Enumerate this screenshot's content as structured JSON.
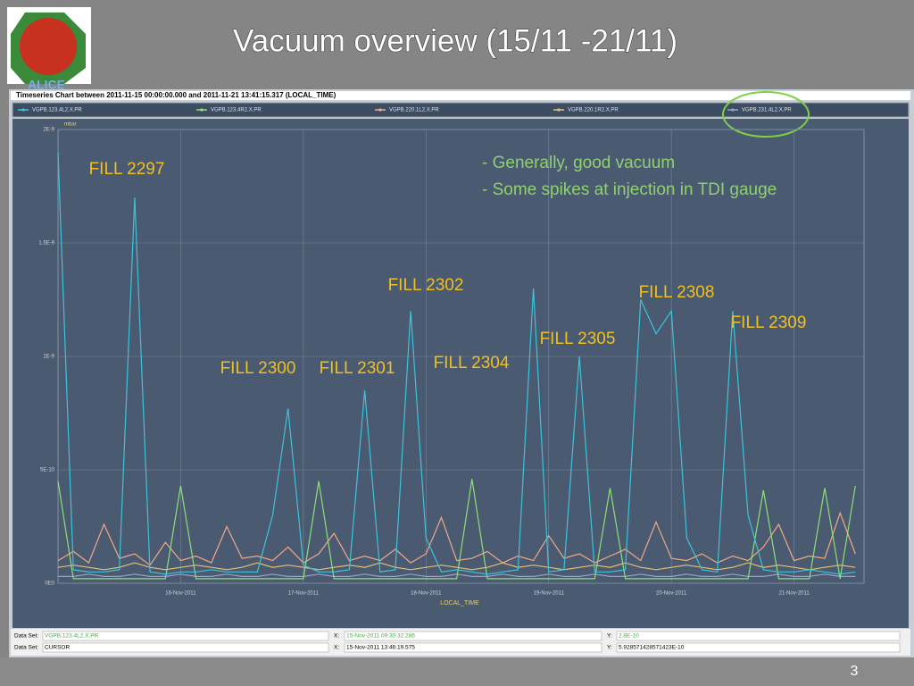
{
  "slide": {
    "title": "Vacuum overview (15/11 -21/11)",
    "logo_text": "ALICE",
    "page_number": "3",
    "notes": [
      "- Generally, good vacuum",
      "- Some spikes at injection in TDI gauge"
    ],
    "fill_labels": [
      "FILL 2297",
      "FILL 2300",
      "FILL 2301",
      "FILL 2302",
      "FILL 2304",
      "FILL 2305",
      "FILL 2308",
      "FILL 2309"
    ]
  },
  "info_panel": {
    "rows": [
      [
        "Data Set:",
        "VGPB.123.4L2.X.PR",
        "X:",
        "15-Nov-2011 09:30:32.286",
        "Y:",
        "2.8E-10"
      ],
      [
        "Data Set:",
        "CURSOR",
        "X:",
        "15-Nov-2011 13:46:19.575",
        "Y:",
        "5.928571428571423E-10"
      ]
    ]
  },
  "chart_data": {
    "type": "line",
    "title": "Timeseries Chart between 2011-11-15 00:00:00.000 and 2011-11-21 13:41:15.317 (LOCAL_TIME)",
    "y_label": "mbar",
    "x_label": "LOCAL_TIME",
    "grid": true,
    "xlim": [
      "2011-11-15 00:00:00.000",
      "2011-11-21 13:41:15.317"
    ],
    "xticks": [
      {
        "value": "2011-11-16 00:00",
        "label": "16-Nov-2011"
      },
      {
        "value": "2011-11-17 00:00",
        "label": "17-Nov-2011"
      },
      {
        "value": "2011-11-18 00:00",
        "label": "18-Nov-2011"
      },
      {
        "value": "2011-11-19 00:00",
        "label": "19-Nov-2011"
      },
      {
        "value": "2011-11-20 00:00",
        "label": "20-Nov-2011"
      },
      {
        "value": "2011-11-21 00:00",
        "label": "21-Nov-2011"
      }
    ],
    "ylim": [
      0,
      2e-09
    ],
    "yticks": [
      {
        "value": 0,
        "label": "0E0"
      },
      {
        "value": 5e-10,
        "label": "5E-10"
      },
      {
        "value": 1e-09,
        "label": "1E-9"
      },
      {
        "value": 1.5e-09,
        "label": "1.5E-9"
      },
      {
        "value": 2e-09,
        "label": "2E-9"
      }
    ],
    "x": [
      "2011-11-15 00:00",
      "2011-11-15 03:00",
      "2011-11-15 06:00",
      "2011-11-15 09:00",
      "2011-11-15 12:00",
      "2011-11-15 15:00",
      "2011-11-15 18:00",
      "2011-11-15 21:00",
      "2011-11-16 00:00",
      "2011-11-16 03:00",
      "2011-11-16 06:00",
      "2011-11-16 09:00",
      "2011-11-16 12:00",
      "2011-11-16 15:00",
      "2011-11-16 18:00",
      "2011-11-16 21:00",
      "2011-11-17 00:00",
      "2011-11-17 03:00",
      "2011-11-17 06:00",
      "2011-11-17 09:00",
      "2011-11-17 12:00",
      "2011-11-17 15:00",
      "2011-11-17 18:00",
      "2011-11-17 21:00",
      "2011-11-18 00:00",
      "2011-11-18 03:00",
      "2011-11-18 06:00",
      "2011-11-18 09:00",
      "2011-11-18 12:00",
      "2011-11-18 15:00",
      "2011-11-18 18:00",
      "2011-11-18 21:00",
      "2011-11-19 00:00",
      "2011-11-19 03:00",
      "2011-11-19 06:00",
      "2011-11-19 09:00",
      "2011-11-19 12:00",
      "2011-11-19 15:00",
      "2011-11-19 18:00",
      "2011-11-19 21:00",
      "2011-11-20 00:00",
      "2011-11-20 03:00",
      "2011-11-20 06:00",
      "2011-11-20 09:00",
      "2011-11-20 12:00",
      "2011-11-20 15:00",
      "2011-11-20 18:00",
      "2011-11-20 21:00",
      "2011-11-21 00:00",
      "2011-11-21 03:00",
      "2011-11-21 06:00",
      "2011-11-21 09:00",
      "2011-11-21 12:00"
    ],
    "series": [
      {
        "name": "VGPB.123.4L2.X.PR",
        "color": "#3cc4dc",
        "values": [
          1.9e-09,
          6e-11,
          5e-11,
          5e-11,
          6e-11,
          1.7e-09,
          5e-11,
          4e-11,
          5e-11,
          5e-11,
          6e-11,
          5e-11,
          5e-11,
          5e-11,
          3e-10,
          7.7e-10,
          8e-11,
          5e-11,
          5e-11,
          6e-11,
          8.5e-10,
          5e-11,
          6e-11,
          1.2e-09,
          2e-10,
          5e-11,
          6e-11,
          5e-11,
          4e-11,
          5e-11,
          6e-11,
          1.3e-09,
          5e-11,
          6e-11,
          1e-09,
          5e-11,
          5e-11,
          6e-11,
          1.25e-09,
          1.1e-09,
          1.2e-09,
          2e-10,
          6e-11,
          5e-11,
          1.2e-09,
          3e-10,
          6e-11,
          5e-11,
          5e-11,
          6e-11,
          5e-11,
          4e-11,
          5e-11
        ]
      },
      {
        "name": "VGPB.123.4R2.X.PR",
        "color": "#8ee07a",
        "values": [
          4.5e-10,
          2e-11,
          2e-11,
          2e-11,
          2e-11,
          2e-11,
          2e-11,
          2e-11,
          4.3e-10,
          2e-11,
          2e-11,
          2e-11,
          2e-11,
          2e-11,
          2e-11,
          2e-11,
          2e-11,
          4.5e-10,
          2e-11,
          2e-11,
          2e-11,
          2e-11,
          2e-11,
          2e-11,
          2e-11,
          2e-11,
          2e-11,
          4.6e-10,
          2e-11,
          2e-11,
          2e-11,
          2e-11,
          2e-11,
          2e-11,
          2e-11,
          2e-11,
          4.2e-10,
          2e-11,
          2e-11,
          2e-11,
          2e-11,
          2e-11,
          2e-11,
          2e-11,
          2e-11,
          2e-11,
          4.1e-10,
          2e-11,
          2e-11,
          2e-11,
          4.2e-10,
          2e-11,
          4.3e-10
        ]
      },
      {
        "name": "VGPB.220.1L2.X.PR",
        "color": "#f2a98a",
        "values": [
          1e-10,
          1.4e-10,
          9e-11,
          2.6e-10,
          1.1e-10,
          1.3e-10,
          8e-11,
          1.8e-10,
          1e-10,
          1.2e-10,
          9e-11,
          2.5e-10,
          1.1e-10,
          1.2e-10,
          1e-10,
          1.6e-10,
          9e-11,
          1.3e-10,
          2.2e-10,
          1e-10,
          1.2e-10,
          1e-10,
          1.5e-10,
          9e-11,
          1.3e-10,
          2.9e-10,
          1e-10,
          1.1e-10,
          1.4e-10,
          9e-11,
          1.2e-10,
          1e-10,
          2.1e-10,
          1.1e-10,
          1.3e-10,
          9e-11,
          1.2e-10,
          1.5e-10,
          1e-10,
          2.7e-10,
          1.1e-10,
          1e-10,
          1.3e-10,
          9e-11,
          1.2e-10,
          1e-10,
          1.6e-10,
          2.6e-10,
          1e-10,
          1.2e-10,
          1.1e-10,
          3.1e-10,
          1.3e-10
        ]
      },
      {
        "name": "VGPB.220.1R2.X.PR",
        "color": "#e6c070",
        "values": [
          7e-11,
          8e-11,
          7e-11,
          6e-11,
          7e-11,
          9e-11,
          7e-11,
          6e-11,
          7e-11,
          8e-11,
          7e-11,
          6e-11,
          7e-11,
          9e-11,
          7e-11,
          8e-11,
          7e-11,
          6e-11,
          7e-11,
          8e-11,
          7e-11,
          9e-11,
          7e-11,
          6e-11,
          7e-11,
          8e-11,
          7e-11,
          6e-11,
          7e-11,
          9e-11,
          7e-11,
          8e-11,
          7e-11,
          6e-11,
          7e-11,
          8e-11,
          7e-11,
          9e-11,
          7e-11,
          6e-11,
          7e-11,
          8e-11,
          7e-11,
          6e-11,
          7e-11,
          9e-11,
          7e-11,
          8e-11,
          7e-11,
          6e-11,
          7e-11,
          8e-11,
          7e-11
        ]
      },
      {
        "name": "VGPB.231.4L2.X.PR",
        "color": "#9aa4c8",
        "values": [
          3e-11,
          3e-11,
          4e-11,
          3e-11,
          3e-11,
          4e-11,
          3e-11,
          3e-11,
          4e-11,
          3e-11,
          3e-11,
          4e-11,
          3e-11,
          3e-11,
          4e-11,
          3e-11,
          3e-11,
          4e-11,
          3e-11,
          3e-11,
          4e-11,
          3e-11,
          3e-11,
          4e-11,
          3e-11,
          3e-11,
          4e-11,
          3e-11,
          3e-11,
          4e-11,
          3e-11,
          3e-11,
          4e-11,
          3e-11,
          3e-11,
          4e-11,
          3e-11,
          3e-11,
          4e-11,
          3e-11,
          3e-11,
          4e-11,
          3e-11,
          3e-11,
          4e-11,
          3e-11,
          3e-11,
          4e-11,
          3e-11,
          3e-11,
          4e-11,
          3e-11,
          3e-11
        ]
      }
    ]
  }
}
